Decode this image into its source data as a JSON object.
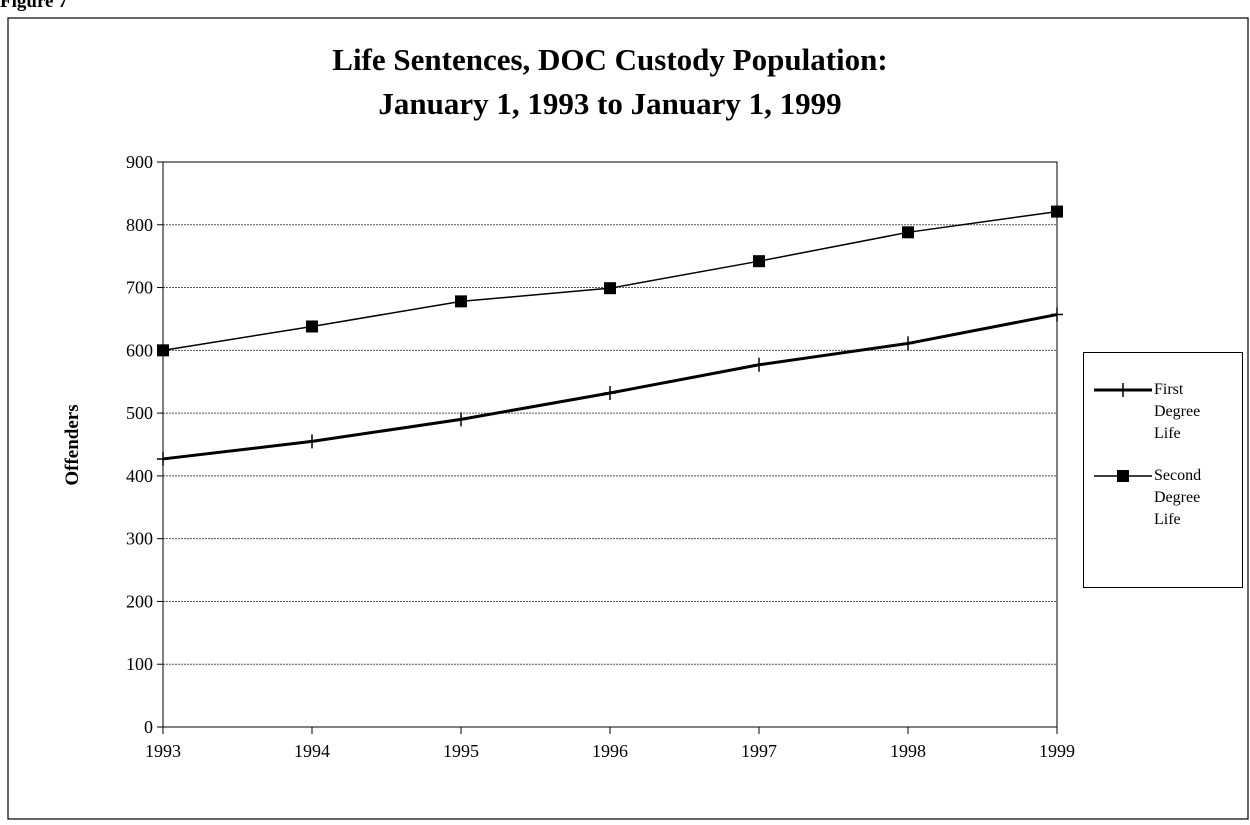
{
  "figure": "Figure 7",
  "chart_data": {
    "type": "line",
    "title": [
      "Life Sentences, DOC Custody Population:",
      "January 1, 1993 to January 1, 1999"
    ],
    "y_label": "Offenders",
    "x": [
      1993,
      1994,
      1995,
      1996,
      1997,
      1998,
      1999
    ],
    "xlim": [
      1993,
      1999
    ],
    "xticks": [
      1993,
      1994,
      1995,
      1996,
      1997,
      1998,
      1999
    ],
    "ylim": [
      0,
      900
    ],
    "yticks": [
      0,
      100,
      200,
      300,
      400,
      500,
      600,
      700,
      800,
      900
    ],
    "grid": true,
    "legend": "right",
    "series": [
      {
        "name": "First Degree Life",
        "color": "#000000",
        "marker": "plus",
        "values": [
          427,
          455,
          490,
          532,
          577,
          611,
          657
        ]
      },
      {
        "name": "Second Degree Life",
        "color": "#000000",
        "marker": "square",
        "values": [
          600,
          638,
          678,
          699,
          742,
          788,
          821
        ]
      }
    ]
  }
}
